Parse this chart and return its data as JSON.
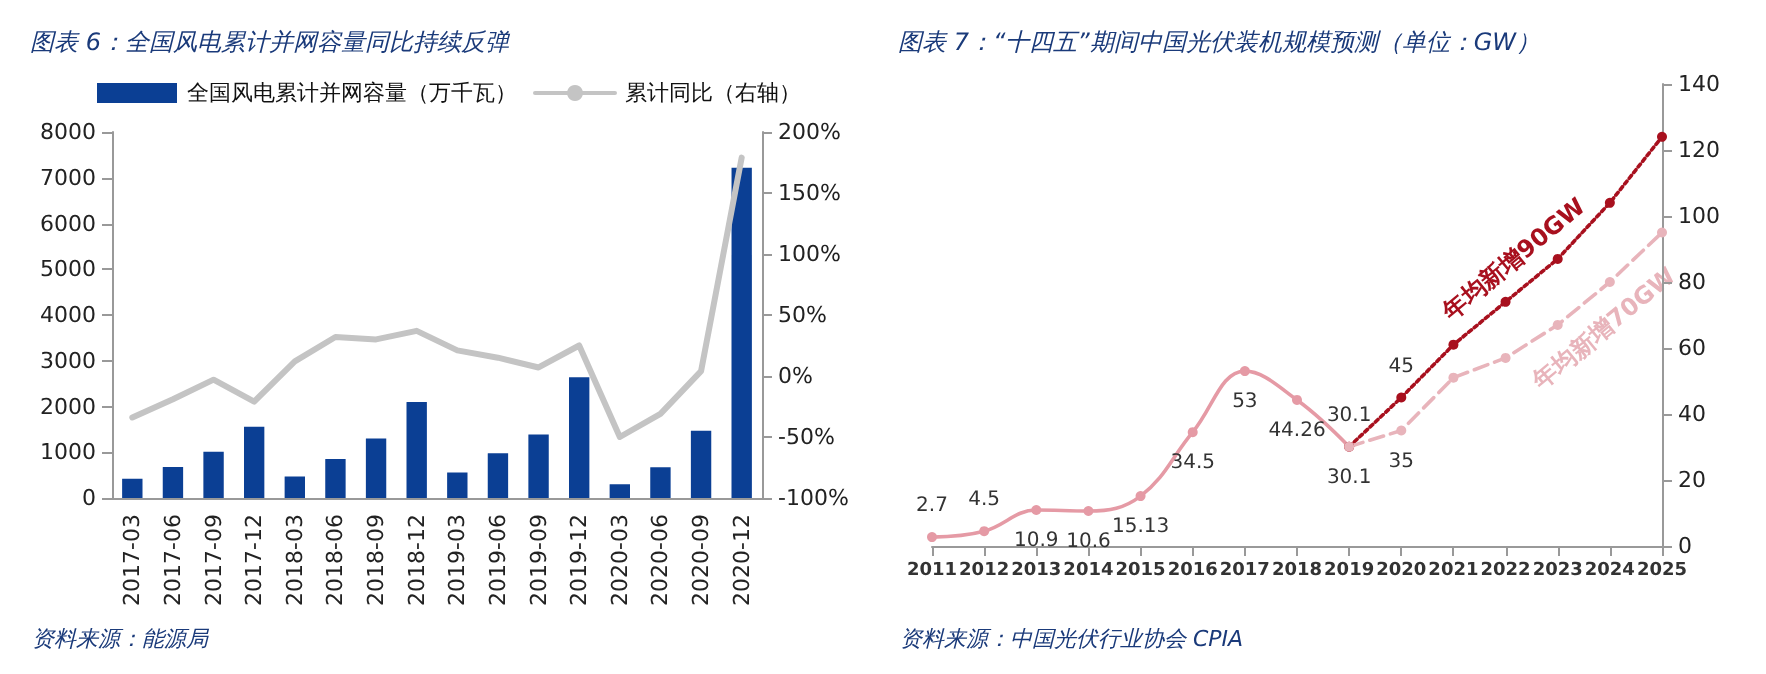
{
  "chart_data": [
    {
      "type": "bar",
      "title": "图表 6：全国风电累计并网容量同比持续反弹",
      "categories": [
        "2017-03",
        "2017-06",
        "2017-09",
        "2017-12",
        "2018-03",
        "2018-06",
        "2018-09",
        "2018-12",
        "2019-03",
        "2019-06",
        "2019-09",
        "2019-12",
        "2020-03",
        "2020-06",
        "2020-09",
        "2020-12"
      ],
      "series": [
        {
          "name": "全国风电累计并网容量（万千瓦）",
          "color": "#0b3f94",
          "values": [
            420,
            680,
            1010,
            1560,
            470,
            850,
            1300,
            2100,
            560,
            980,
            1390,
            2640,
            300,
            670,
            1470,
            7220
          ]
        },
        {
          "name": "累计同比（右轴）",
          "type": "line",
          "axis": "y2",
          "color": "#c4c4c4",
          "values": [
            -34,
            -19,
            -3,
            -21,
            12,
            32,
            30,
            37,
            21,
            15,
            7,
            25,
            -50,
            -31,
            4,
            179
          ]
        }
      ],
      "ylim": [
        0,
        8000
      ],
      "yticks": [
        0,
        1000,
        2000,
        3000,
        4000,
        5000,
        6000,
        7000,
        8000
      ],
      "y2lim": [
        -100,
        200
      ],
      "y2ticks": [
        {
          "value": -100,
          "label": "-100%"
        },
        {
          "value": -50,
          "label": "-50%"
        },
        {
          "value": 0,
          "label": "0%"
        },
        {
          "value": 50,
          "label": "50%"
        },
        {
          "value": 100,
          "label": "100%"
        },
        {
          "value": 150,
          "label": "150%"
        },
        {
          "value": 200,
          "label": "200%"
        }
      ],
      "grid": false,
      "legend": "top",
      "marker": "none",
      "annotations": [
        "资料来源：能源局"
      ]
    },
    {
      "type": "line",
      "title": "图表 7：“十四五”期间中国光伏装机规模预测（单位：GW）",
      "xlim": [
        2011,
        2025
      ],
      "xticks": [
        2011,
        2012,
        2013,
        2014,
        2015,
        2016,
        2017,
        2018,
        2019,
        2020,
        2021,
        2022,
        2023,
        2024,
        2025
      ],
      "y2lim": [
        0,
        140
      ],
      "y2ticks": [
        0,
        20,
        40,
        60,
        80,
        100,
        120,
        140
      ],
      "series": [
        {
          "color": "#e59aa5",
          "axis": "y2",
          "line_style": "solid",
          "x": [
            2011,
            2012,
            2013,
            2014,
            2015,
            2016,
            2017,
            2018,
            2019
          ],
          "values": [
            2.7,
            4.5,
            10.9,
            10.6,
            15.13,
            34.5,
            53,
            44.26,
            30.1
          ],
          "value_labels": [
            "2.7",
            "4.5",
            "10.9",
            "10.6",
            "15.13",
            "34.5",
            "53",
            "44.26",
            null
          ]
        },
        {
          "name": "年均新增90GW",
          "color": "#a8101e",
          "axis": "y2",
          "line_style": "dotted",
          "x": [
            2019,
            2020,
            2021,
            2022,
            2023,
            2024,
            2025
          ],
          "values": [
            30.1,
            45,
            61,
            74,
            87,
            104,
            124
          ],
          "value_labels": [
            "30.1",
            "45",
            null,
            null,
            null,
            null,
            null
          ]
        },
        {
          "name": "年均新增70GW",
          "color": "#e8b4bb",
          "axis": "y2",
          "line_style": "dashed",
          "x": [
            2019,
            2020,
            2021,
            2022,
            2023,
            2024,
            2025
          ],
          "values": [
            30.1,
            35,
            51,
            57,
            67,
            80,
            95
          ],
          "value_labels": [
            "30.1",
            "35",
            null,
            null,
            null,
            null,
            null
          ]
        }
      ],
      "grid": false,
      "legend": false,
      "marker": "circle",
      "annotations": [
        "资料来源：中国光伏行业协会 CPIA"
      ]
    }
  ]
}
